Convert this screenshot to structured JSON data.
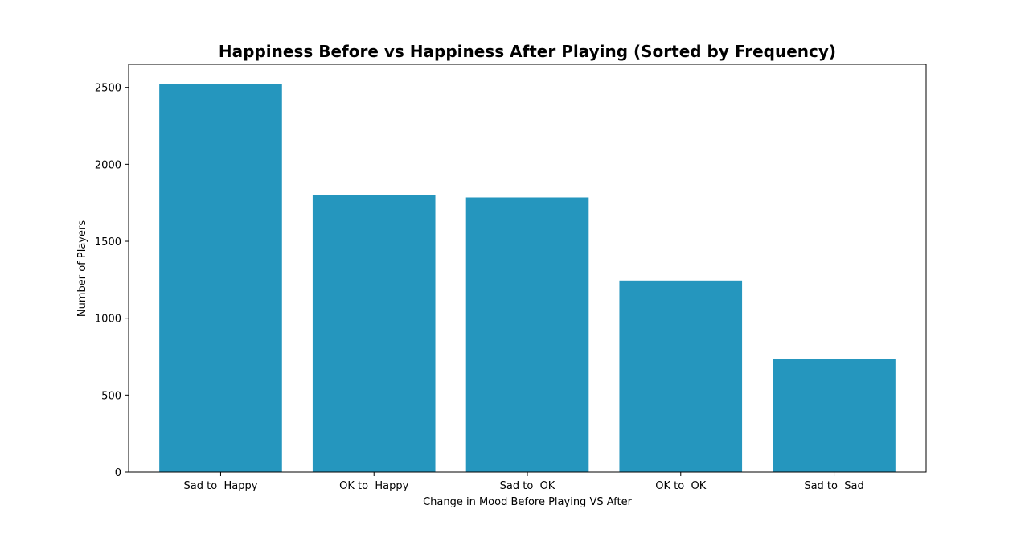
{
  "chart_data": {
    "type": "bar",
    "title": "Happiness Before vs Happiness After Playing (Sorted by Frequency)",
    "xlabel": "Change in Mood Before Playing VS After",
    "ylabel": "Number of Players",
    "categories": [
      "Sad to  Happy",
      "OK to  Happy",
      "Sad to  OK",
      "OK to  OK",
      "Sad to  Sad"
    ],
    "values": [
      2520,
      1800,
      1785,
      1245,
      735
    ],
    "ylim": [
      0,
      2650
    ],
    "yticks": [
      0,
      500,
      1000,
      1500,
      2000,
      2500
    ],
    "bar_color": "#2596be",
    "grid": false,
    "legend": "none"
  }
}
